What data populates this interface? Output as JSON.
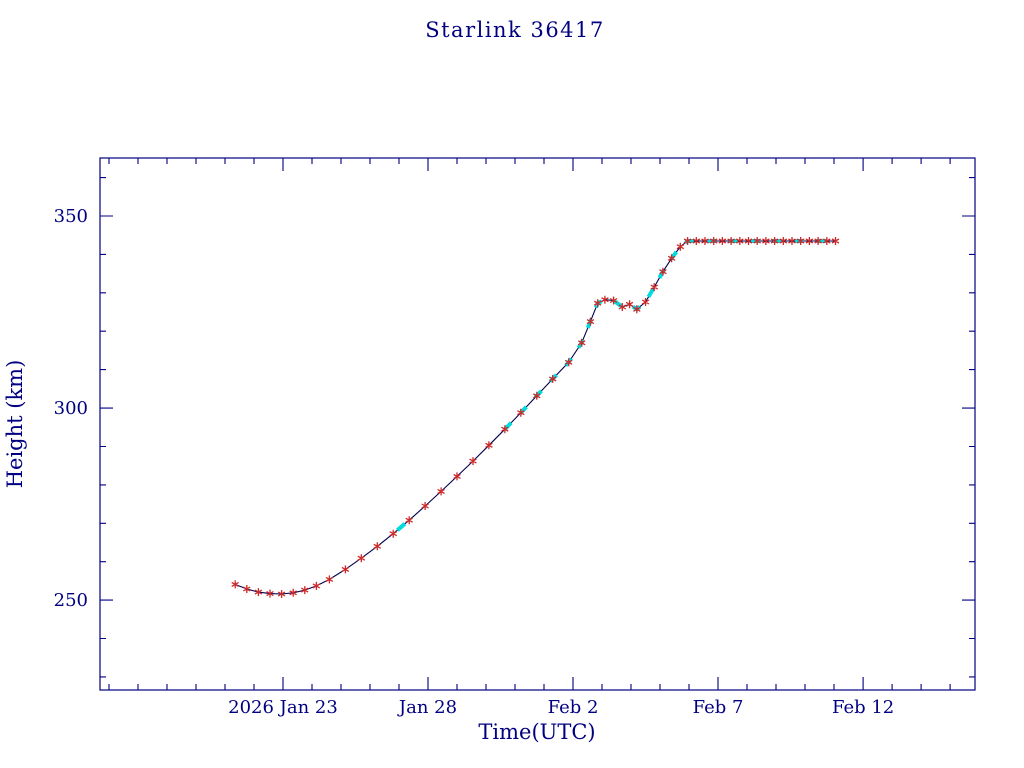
{
  "chart_data": {
    "type": "line",
    "title": "Starlink 36417",
    "xlabel": "Time(UTC)",
    "ylabel": "Height (km)",
    "x_unit": "days relative to 2026 Jan 23 00:00 UTC",
    "x_range": [
      -6.31,
      23.86
    ],
    "y_range": [
      226.6,
      365.1
    ],
    "x_ticks": [
      {
        "day": 0,
        "label": "2026 Jan 23"
      },
      {
        "day": 5,
        "label": "Jan 28"
      },
      {
        "day": 10,
        "label": "Feb  2"
      },
      {
        "day": 15,
        "label": "Feb  7"
      },
      {
        "day": 20,
        "label": "Feb 12"
      }
    ],
    "x_minor_step": 1,
    "y_ticks": [
      250,
      300,
      350
    ],
    "y_minor_step": 10,
    "grid": false,
    "legend": "none",
    "series": [
      {
        "name": "height",
        "marker": "asterisk",
        "points": [
          [
            -1.65,
            254.1
          ],
          [
            -1.25,
            252.9
          ],
          [
            -0.85,
            252.1
          ],
          [
            -0.45,
            251.7
          ],
          [
            -0.05,
            251.6
          ],
          [
            0.35,
            251.9
          ],
          [
            0.75,
            252.6
          ],
          [
            1.15,
            253.7
          ],
          [
            1.6,
            255.4
          ],
          [
            2.15,
            258.0
          ],
          [
            2.7,
            260.9
          ],
          [
            3.25,
            264.0
          ],
          [
            3.8,
            267.3
          ],
          [
            4.35,
            270.8
          ],
          [
            4.9,
            274.5
          ],
          [
            5.45,
            278.3
          ],
          [
            6.0,
            282.2
          ],
          [
            6.55,
            286.2
          ],
          [
            7.1,
            290.3
          ],
          [
            7.65,
            294.5
          ],
          [
            8.2,
            298.8
          ],
          [
            8.75,
            303.2
          ],
          [
            9.3,
            307.6
          ],
          [
            9.85,
            311.9
          ],
          [
            10.3,
            317.0
          ],
          [
            10.6,
            322.5
          ],
          [
            10.85,
            327.3
          ],
          [
            11.1,
            328.2
          ],
          [
            11.4,
            328.0
          ],
          [
            11.7,
            326.3
          ],
          [
            11.95,
            327.0
          ],
          [
            12.2,
            325.7
          ],
          [
            12.5,
            327.6
          ],
          [
            12.8,
            331.5
          ],
          [
            13.1,
            335.5
          ],
          [
            13.4,
            339.0
          ],
          [
            13.7,
            342.0
          ],
          [
            13.95,
            343.5
          ],
          [
            14.25,
            343.5
          ],
          [
            14.55,
            343.5
          ],
          [
            14.85,
            343.5
          ],
          [
            15.15,
            343.5
          ],
          [
            15.45,
            343.5
          ],
          [
            15.75,
            343.5
          ],
          [
            16.05,
            343.5
          ],
          [
            16.35,
            343.5
          ],
          [
            16.65,
            343.5
          ],
          [
            16.95,
            343.5
          ],
          [
            17.25,
            343.5
          ],
          [
            17.55,
            343.5
          ],
          [
            17.85,
            343.5
          ],
          [
            18.15,
            343.5
          ],
          [
            18.45,
            343.5
          ],
          [
            18.75,
            343.5
          ],
          [
            19.05,
            343.5
          ]
        ]
      }
    ],
    "cyan_overlay_from_day": 7.3,
    "extra_cyan_segments": [
      [
        3.8,
        4.35
      ]
    ],
    "colors": {
      "axis": "#000080",
      "line": "#00004f",
      "marker": "#cc2929",
      "overlay": "#00dbdb",
      "background": "#ffffff"
    }
  }
}
